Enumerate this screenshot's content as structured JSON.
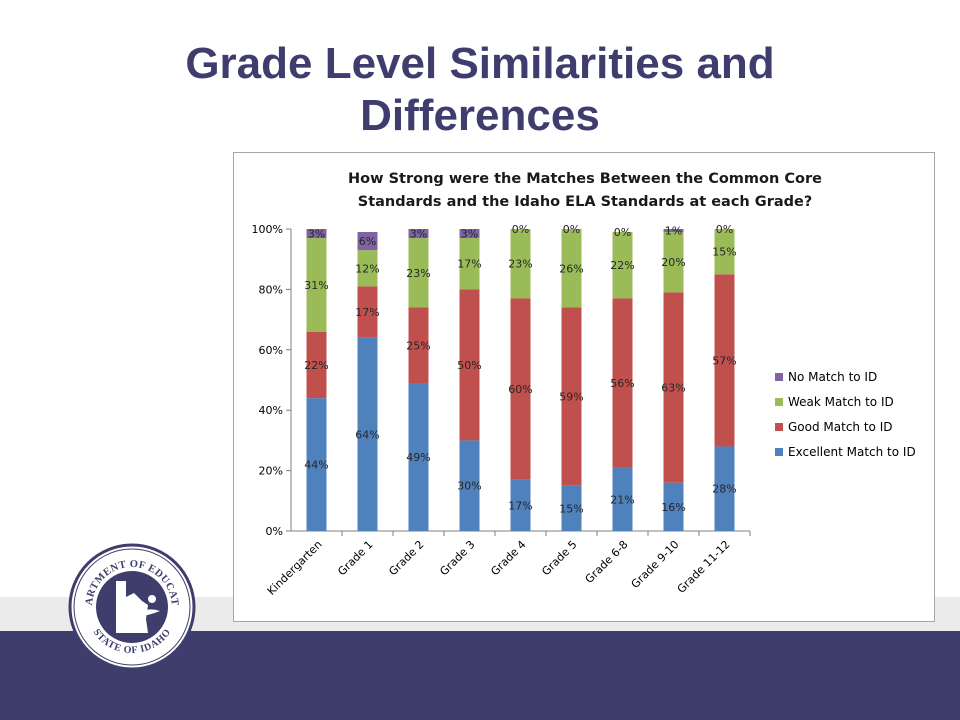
{
  "slide": {
    "title_line1": "Grade Level Similarities and",
    "title_line2": "Differences"
  },
  "seal": {
    "top_text": "DEPARTMENT OF EDUCATION",
    "bottom_text": "STATE OF IDAHO"
  },
  "colors": {
    "title": "#3f3d6d",
    "footer": "#3f3d6b",
    "excellent": "#4f81bd",
    "good": "#c0504d",
    "weak": "#9bbb59",
    "no_match": "#8064a2"
  },
  "chart_data": {
    "type": "bar",
    "stacked": true,
    "percent": true,
    "title_line1": "How Strong were the Matches Between the Common Core",
    "title_line2": "Standards and the Idaho ELA Standards at each Grade?",
    "categories": [
      "Kindergarten",
      "Grade 1",
      "Grade 2",
      "Grade 3",
      "Grade 4",
      "Grade 5",
      "Grade 6-8",
      "Grade 9-10",
      "Grade 11-12"
    ],
    "series": [
      {
        "name": "Excellent Match to ID",
        "values": [
          44,
          64,
          49,
          30,
          17,
          15,
          21,
          16,
          28
        ]
      },
      {
        "name": "Good Match to ID",
        "values": [
          22,
          17,
          25,
          50,
          60,
          59,
          56,
          63,
          57
        ]
      },
      {
        "name": "Weak Match to ID",
        "values": [
          31,
          12,
          23,
          17,
          23,
          26,
          22,
          20,
          15
        ]
      },
      {
        "name": "No Match to ID",
        "values": [
          3,
          6,
          3,
          3,
          0,
          0,
          0,
          1,
          0
        ]
      }
    ],
    "y_ticks": [
      "0%",
      "20%",
      "40%",
      "60%",
      "80%",
      "100%"
    ],
    "ylim": [
      0,
      100
    ],
    "legend_order": [
      "No Match to ID",
      "Weak Match to ID",
      "Good Match to ID",
      "Excellent Match to ID"
    ],
    "legend_position": "right",
    "grid": false
  }
}
